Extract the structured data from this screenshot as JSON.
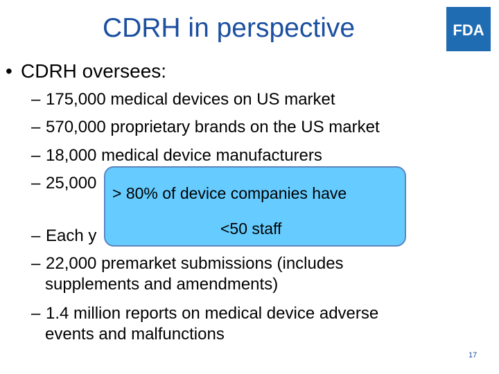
{
  "slide": {
    "title": "CDRH in perspective",
    "logo_text": "FDA",
    "main_bullet": "CDRH oversees:",
    "bullet_symbol": "•",
    "dash_symbol": "–",
    "items": [
      "175,000 medical devices on US market",
      "570,000 proprietary brands on the US market",
      "18,000 medical device manufacturers",
      "25,000",
      "Each y"
    ],
    "items_lower": [
      {
        "line1": "22,000 premarket submissions (includes",
        "line2": "supplements and amendments)"
      },
      {
        "line1": "1.4 million reports on medical device adverse",
        "line2": "events and malfunctions"
      }
    ],
    "callout": {
      "line1": "> 80% of device companies have",
      "line2": "<50 staff",
      "fill_color": "#66ccff",
      "border_color": "#5b85c0"
    },
    "page_number": "17",
    "title_color": "#1b4fa0",
    "logo_color": "#1f6cb3"
  }
}
